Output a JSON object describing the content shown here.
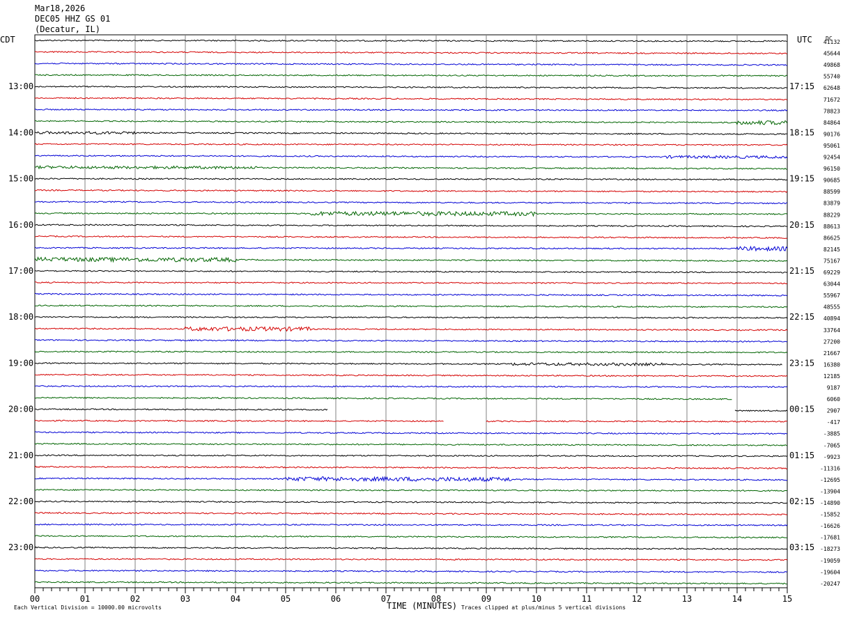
{
  "header": {
    "line1": "Mar18,2026",
    "line2": "DEC05 HHZ GS 01",
    "line3": "(Decatur, IL)"
  },
  "left_tz": "CDT",
  "right_tz": "UTC",
  "dc_label": "DC",
  "footer": {
    "scale": "Each Vertical Division = 10000.00 microvolts",
    "clip": "Traces clipped at plus/minus 5 vertical divisions",
    "xlabel": "TIME (MINUTES)"
  },
  "colors": {
    "trace": [
      "#000000",
      "#d40000",
      "#0000d4",
      "#006400"
    ],
    "grid": "#808080"
  },
  "chart_data": {
    "type": "line",
    "title": "",
    "xlabel": "TIME (MINUTES)",
    "xlim": [
      0,
      15
    ],
    "x_ticks": [
      "00",
      "01",
      "02",
      "03",
      "04",
      "05",
      "06",
      "07",
      "08",
      "09",
      "10",
      "11",
      "12",
      "13",
      "14",
      "15"
    ],
    "left_hour_labels": [
      "13:00",
      "14:00",
      "15:00",
      "16:00",
      "17:00",
      "18:00",
      "19:00",
      "20:00",
      "21:00",
      "22:00",
      "23:00"
    ],
    "right_hour_labels": [
      "17:15",
      "18:15",
      "19:15",
      "20:15",
      "21:15",
      "22:15",
      "23:15",
      "00:15",
      "01:15",
      "02:15",
      "03:15"
    ],
    "dc_offsets": [
      "41132",
      "45644",
      "49868",
      "55740",
      "62648",
      "71672",
      "78823",
      "84864",
      "90176",
      "95061",
      "92454",
      "96150",
      "90685",
      "88599",
      "83879",
      "88229",
      "88613",
      "86625",
      "82145",
      "75167",
      "69229",
      "63044",
      "55967",
      "48555",
      "40894",
      "33764",
      "27200",
      "21667",
      "16380",
      "12185",
      "9187",
      "6060",
      "2907",
      "-417",
      "-3885",
      "-7065",
      "-9923",
      "-11316",
      "-12695",
      "-13904",
      "-14890",
      "-15852",
      "-16626",
      "-17681",
      "-18273",
      "-19059",
      "-19604",
      "-20247"
    ],
    "trace_count": 48,
    "minutes_per_trace": 15,
    "event_noise": [
      {
        "trace": 7,
        "from": 14.0,
        "to": 15.0,
        "amp": 3
      },
      {
        "trace": 8,
        "from": 0,
        "to": 2.0,
        "amp": 2
      },
      {
        "trace": 10,
        "from": 12.5,
        "to": 15.0,
        "amp": 2
      },
      {
        "trace": 11,
        "from": 0,
        "to": 4.5,
        "amp": 2
      },
      {
        "trace": 15,
        "from": 5.5,
        "to": 10.0,
        "amp": 3
      },
      {
        "trace": 18,
        "from": 14.0,
        "to": 15.0,
        "amp": 3
      },
      {
        "trace": 19,
        "from": 0,
        "to": 4.0,
        "amp": 3
      },
      {
        "trace": 25,
        "from": 3.0,
        "to": 5.5,
        "amp": 3
      },
      {
        "trace": 28,
        "from": 9.5,
        "to": 12.5,
        "amp": 2
      },
      {
        "trace": 38,
        "from": 5.0,
        "to": 9.5,
        "amp": 3
      }
    ],
    "gaps": [
      {
        "trace": 28,
        "from": 14.9,
        "to": 15.0
      },
      {
        "trace": 31,
        "from": 13.9,
        "to": 15.0
      },
      {
        "trace": 32,
        "from": 5.85,
        "to": 13.95
      },
      {
        "trace": 33,
        "from": 8.15,
        "to": 9.0
      }
    ],
    "gap_fills": [
      {
        "trace": 32,
        "from": 12.25,
        "to": 13.95,
        "hide": true
      },
      {
        "trace": 32,
        "from": 5.85,
        "to": 12.25,
        "keep_mid": true
      }
    ]
  }
}
